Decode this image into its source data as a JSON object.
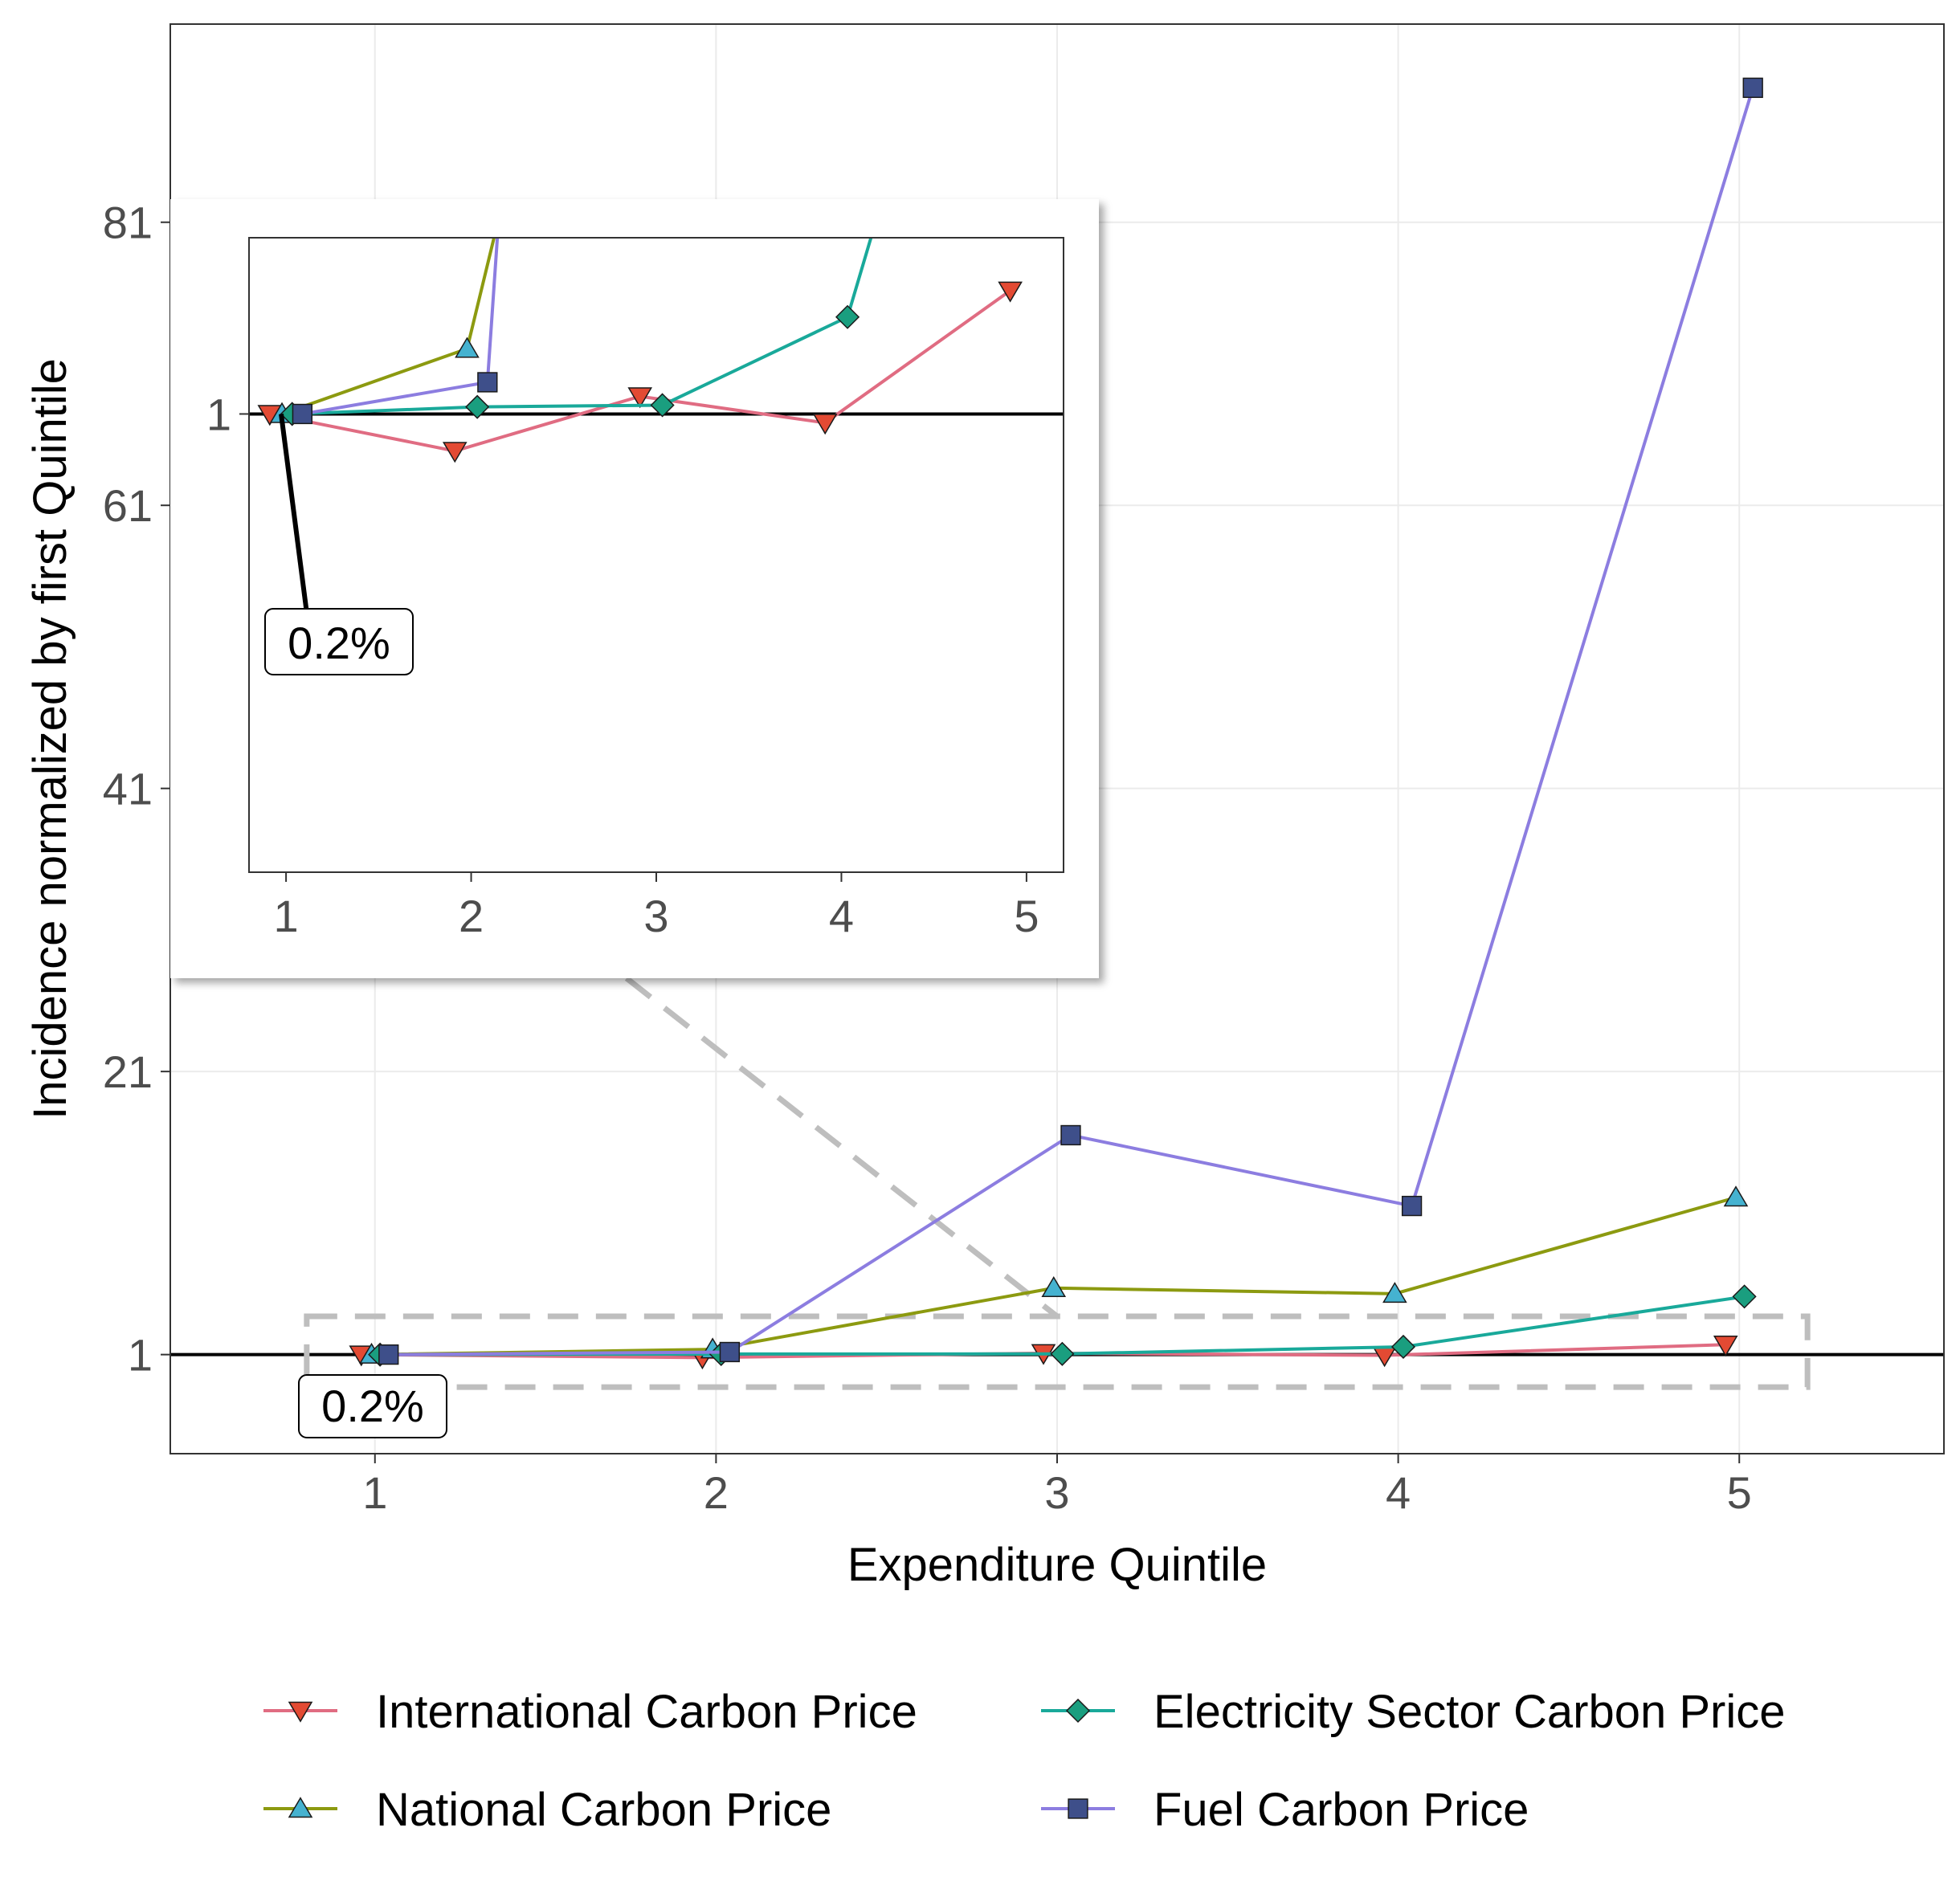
{
  "chart_data": {
    "type": "line",
    "xlabel": "Expenditure Quintile",
    "ylabel": "Incidence normalized by first Quintile",
    "x": [
      1,
      2,
      3,
      4,
      5
    ],
    "xticks": [
      "1",
      "2",
      "3",
      "4",
      "5"
    ],
    "yticks": [
      "1",
      "21",
      "41",
      "61",
      "81"
    ],
    "ylim": [
      -6,
      95
    ],
    "xlim": [
      0.4,
      5.6
    ],
    "grid": true,
    "reference_line": 1,
    "annotation": "0.2%",
    "legend_position": "bottom",
    "series": [
      {
        "name": "International Carbon Price",
        "color": "#e06c82",
        "marker_color": "#e34a33",
        "marker": "triangle-down",
        "values": [
          1.0,
          0.79,
          1.1,
          0.95,
          1.7
        ]
      },
      {
        "name": "National Carbon Price",
        "color": "#8c9a10",
        "marker_color": "#45b2d0",
        "marker": "triangle-up",
        "values": [
          1.0,
          1.37,
          5.7,
          5.3,
          12.1
        ]
      },
      {
        "name": "Electricity Sector Carbon Price",
        "color": "#19a99a",
        "marker_color": "#1a9e7f",
        "marker": "diamond",
        "values": [
          1.0,
          1.04,
          1.05,
          1.55,
          5.1
        ]
      },
      {
        "name": "Fuel Carbon Price",
        "color": "#8c7de0",
        "marker_color": "#3e4f8a",
        "marker": "square",
        "values": [
          1.0,
          1.18,
          16.5,
          11.5,
          90.5
        ]
      }
    ],
    "inset": {
      "xticks": [
        "1",
        "2",
        "3",
        "4",
        "5"
      ],
      "ytick": "1",
      "ylim": [
        -1.6,
        2.0
      ],
      "annotation": "0.2%"
    }
  }
}
